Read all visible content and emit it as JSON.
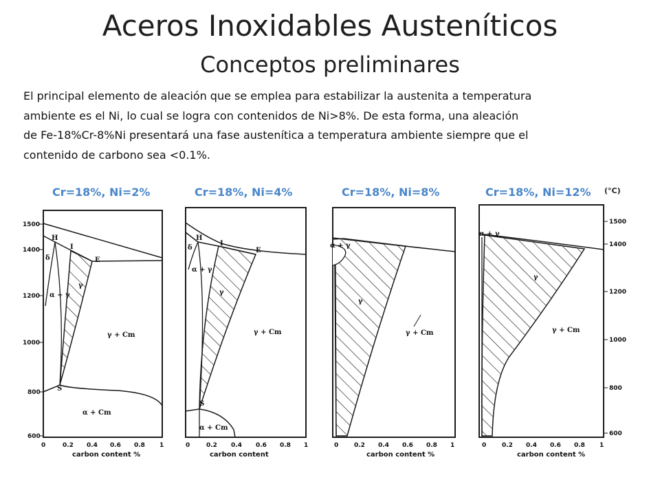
{
  "header": {
    "title": "Aceros Inoxidables Austeníticos",
    "subtitle": "Conceptos preliminares"
  },
  "paragraph": {
    "lines": [
      "El principal elemento de aleación que se emplea para estabilizar la austenita a temperatura",
      "ambiente es el Ni, lo cual se logra con contenidos de Ni>8%. De esta forma, una aleación",
      "de Fe-18%Cr-8%Ni presentará una fase austenítica a temperatura ambiente siempre que el",
      "contenido de carbono sea <0.1%."
    ]
  },
  "colors": {
    "label_blue": "#4a86c8",
    "line": "#1a1a1a"
  },
  "diagrams": [
    {
      "label": "Cr=18%, Ni=2%",
      "y_ticks": [
        "1500",
        "1400",
        "1200",
        "1000",
        "800",
        "600"
      ],
      "x_ticks": [
        "0",
        "0.2",
        "0.4",
        "0.6",
        "0.8",
        "1"
      ],
      "x_title": "carbon content %",
      "phases": [
        "H",
        "I",
        "E",
        "δ",
        "α + γ",
        "γ",
        "γ + Cm",
        "S",
        "α + Cm"
      ]
    },
    {
      "label": "Cr=18%, Ni=4%",
      "x_ticks": [
        "0",
        "0.2",
        "0.4",
        "0.6",
        "0.8",
        "1"
      ],
      "x_title": "carbon content",
      "phases": [
        "H",
        "I",
        "E",
        "δ",
        "α + γ",
        "γ",
        "γ + Cm",
        "S",
        "α + Cm"
      ]
    },
    {
      "label": "Cr=18%, Ni=8%",
      "x_ticks": [
        "0",
        "0.2",
        "0.4",
        "0.6",
        "0.8",
        "1"
      ],
      "x_title": "carbon content %",
      "phases": [
        "α + γ",
        "γ",
        "γ + Cm"
      ]
    },
    {
      "label": "Cr=18%, Ni=12%",
      "unit": "(°C)",
      "y_ticks": [
        "1500",
        "1400",
        "1200",
        "1000",
        "800",
        "600"
      ],
      "x_ticks": [
        "0",
        "0.2",
        "0.4",
        "0.6",
        "0.8",
        "1"
      ],
      "x_title": "carbon content %",
      "phases": [
        "α + γ",
        "γ",
        "γ + Cm"
      ]
    }
  ]
}
